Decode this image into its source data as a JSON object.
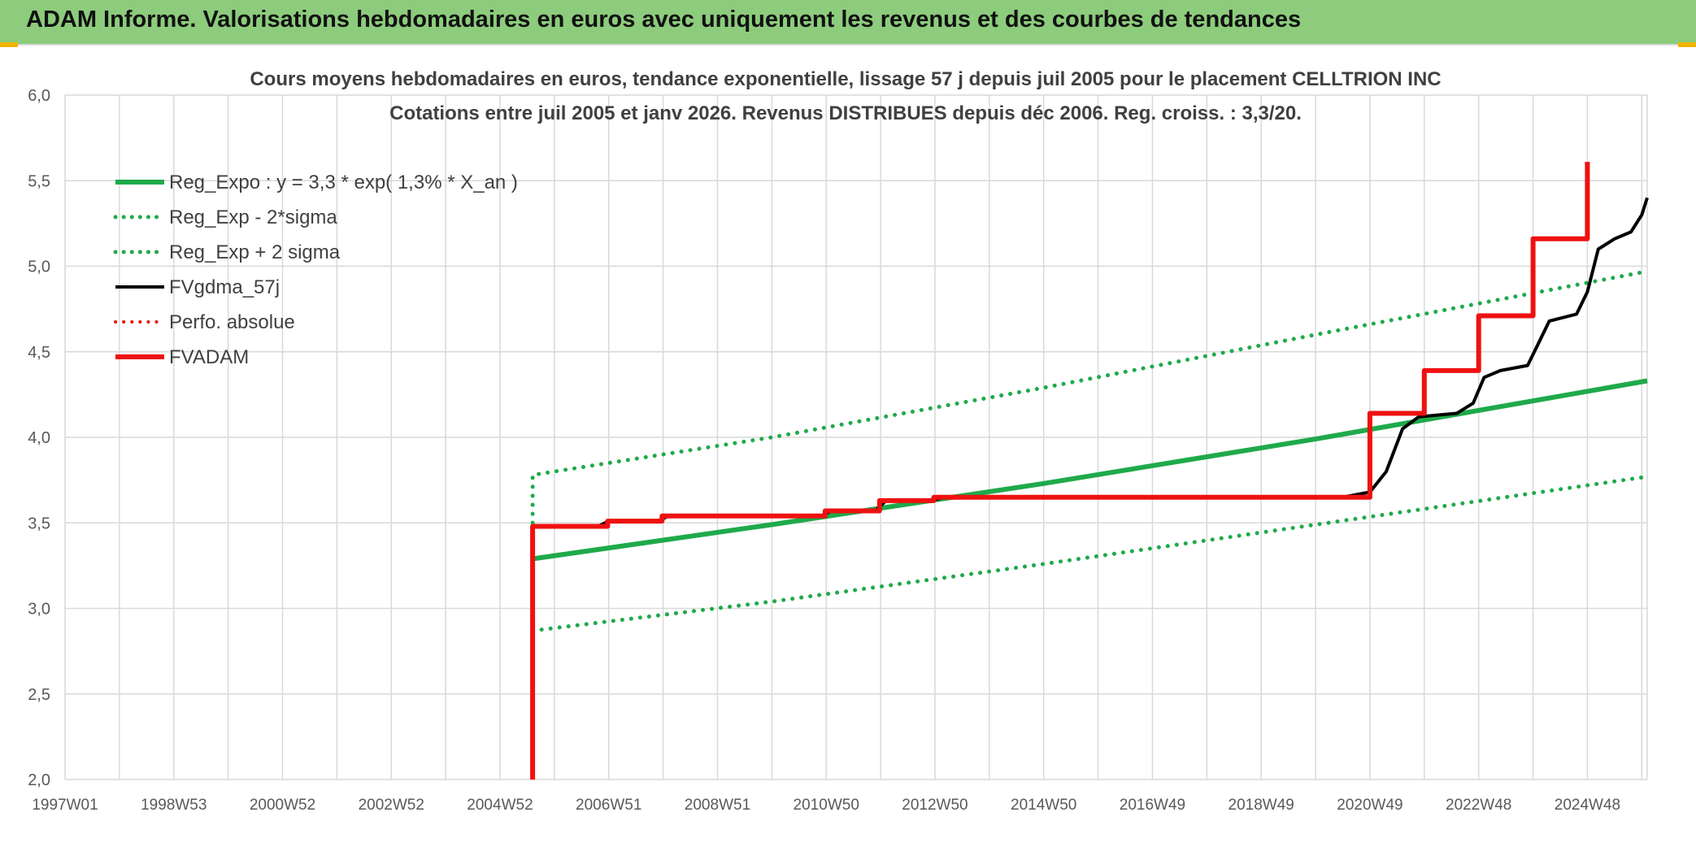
{
  "report": {
    "banner_title": "ADAM Informe. Valorisations hebdomadaires en euros avec uniquement les revenus et des courbes de tendances"
  },
  "colors": {
    "banner_bg": "#8ccc7c",
    "green": "#1faa4a",
    "red": "#ee1111",
    "black": "#000000",
    "grid": "#d9d9d9"
  },
  "chart_data": {
    "type": "line",
    "title_line1": "Cours moyens hebdomadaires en euros, tendance exponentielle, lissage 57 j depuis juil 2005 pour le placement CELLTRION INC",
    "title_line2": "Cotations entre juil 2005 et janv 2026. Revenus DISTRIBUES depuis déc 2006. Reg. croiss. : 3,3/20.",
    "xlabel": "",
    "ylabel": "",
    "x_unit": "year",
    "xlim": [
      1997.0,
      2026.1
    ],
    "ylim": [
      2.0,
      6.0
    ],
    "y_ticks": [
      "2,0",
      "2,5",
      "3,0",
      "3,5",
      "4,0",
      "4,5",
      "5,0",
      "5,5",
      "6,0"
    ],
    "x_ticks": [
      {
        "x": 1997.0,
        "label": "1997W01"
      },
      {
        "x": 1999.0,
        "label": "1998W53"
      },
      {
        "x": 2001.0,
        "label": "2000W52"
      },
      {
        "x": 2003.0,
        "label": "2002W52"
      },
      {
        "x": 2005.0,
        "label": "2004W52"
      },
      {
        "x": 2007.0,
        "label": "2006W51"
      },
      {
        "x": 2009.0,
        "label": "2008W51"
      },
      {
        "x": 2011.0,
        "label": "2010W50"
      },
      {
        "x": 2013.0,
        "label": "2012W50"
      },
      {
        "x": 2015.0,
        "label": "2014W50"
      },
      {
        "x": 2017.0,
        "label": "2016W49"
      },
      {
        "x": 2019.0,
        "label": "2018W49"
      },
      {
        "x": 2021.0,
        "label": "2020W49"
      },
      {
        "x": 2023.0,
        "label": "2022W48"
      },
      {
        "x": 2025.0,
        "label": "2024W48"
      }
    ],
    "grid": true,
    "legend_position": "top-left",
    "series": [
      {
        "name": "Reg_Expo : y = 3,3 * exp( 1,3% *  X_an )",
        "color": "#1faa4a",
        "style": "solid",
        "width": 6,
        "points": [
          [
            2005.6,
            3.29
          ],
          [
            2010.0,
            3.49
          ],
          [
            2015.0,
            3.73
          ],
          [
            2020.0,
            3.99
          ],
          [
            2026.1,
            4.33
          ]
        ]
      },
      {
        "name": "Reg_Exp - 2*sigma",
        "color": "#1faa4a",
        "style": "dotted",
        "width": 5,
        "points": [
          [
            2005.6,
            2.87
          ],
          [
            2010.0,
            3.04
          ],
          [
            2015.0,
            3.26
          ],
          [
            2020.0,
            3.49
          ],
          [
            2026.1,
            3.77
          ]
        ]
      },
      {
        "name": "Reg_Exp + 2 sigma",
        "color": "#1faa4a",
        "style": "dotted",
        "width": 5,
        "points": [
          [
            2005.6,
            3.5
          ],
          [
            2005.6,
            3.78
          ],
          [
            2010.0,
            4.0
          ],
          [
            2015.0,
            4.29
          ],
          [
            2020.0,
            4.6
          ],
          [
            2026.1,
            4.97
          ]
        ]
      },
      {
        "name": "FVgdma_57j",
        "color": "#000000",
        "style": "solid",
        "width": 4,
        "points": [
          [
            2005.6,
            3.48
          ],
          [
            2006.8,
            3.48
          ],
          [
            2007.0,
            3.51
          ],
          [
            2007.9,
            3.51
          ],
          [
            2008.1,
            3.54
          ],
          [
            2010.9,
            3.54
          ],
          [
            2011.1,
            3.57
          ],
          [
            2011.9,
            3.57
          ],
          [
            2012.1,
            3.63
          ],
          [
            2012.9,
            3.63
          ],
          [
            2013.2,
            3.65
          ],
          [
            2020.5,
            3.65
          ],
          [
            2021.0,
            3.68
          ],
          [
            2021.3,
            3.8
          ],
          [
            2021.6,
            4.05
          ],
          [
            2021.9,
            4.12
          ],
          [
            2022.6,
            4.14
          ],
          [
            2022.9,
            4.2
          ],
          [
            2023.1,
            4.35
          ],
          [
            2023.4,
            4.39
          ],
          [
            2023.9,
            4.42
          ],
          [
            2024.1,
            4.55
          ],
          [
            2024.3,
            4.68
          ],
          [
            2024.8,
            4.72
          ],
          [
            2025.0,
            4.85
          ],
          [
            2025.2,
            5.1
          ],
          [
            2025.5,
            5.16
          ],
          [
            2025.8,
            5.2
          ],
          [
            2026.0,
            5.3
          ],
          [
            2026.1,
            5.4
          ]
        ]
      },
      {
        "name": "Perfo. absolue",
        "color": "#ee1111",
        "style": "dotted",
        "width": 4,
        "points": []
      },
      {
        "name": "FVADAM",
        "color": "#ee1111",
        "style": "solid",
        "width": 6,
        "points": [
          [
            2005.6,
            2.0
          ],
          [
            2005.6,
            3.48
          ],
          [
            2006.98,
            3.48
          ],
          [
            2006.98,
            3.51
          ],
          [
            2007.98,
            3.51
          ],
          [
            2007.98,
            3.54
          ],
          [
            2010.98,
            3.54
          ],
          [
            2010.98,
            3.57
          ],
          [
            2011.98,
            3.57
          ],
          [
            2011.98,
            3.63
          ],
          [
            2012.98,
            3.63
          ],
          [
            2012.98,
            3.65
          ],
          [
            2021.0,
            3.65
          ],
          [
            2021.0,
            4.14
          ],
          [
            2022.0,
            4.14
          ],
          [
            2022.0,
            4.39
          ],
          [
            2023.0,
            4.39
          ],
          [
            2023.0,
            4.71
          ],
          [
            2024.0,
            4.71
          ],
          [
            2024.0,
            5.16
          ],
          [
            2025.0,
            5.16
          ],
          [
            2025.0,
            5.61
          ]
        ]
      }
    ]
  }
}
